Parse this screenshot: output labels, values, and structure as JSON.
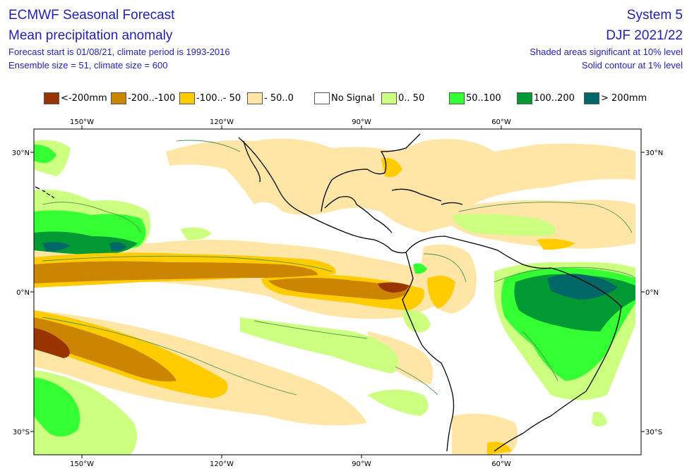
{
  "header": {
    "title": "ECMWF Seasonal Forecast",
    "subtitle": "Mean precipitation anomaly",
    "line3": "Forecast start is 01/08/21, climate period is 1993-2016",
    "line4": "Ensemble size = 51, climate size = 600",
    "system": "System 5",
    "season": "DJF 2021/22",
    "significance": "Shaded areas significant at 10% level",
    "contour": "Solid contour at 1% level"
  },
  "legend": [
    {
      "label": "<-200mm",
      "color": "#993300"
    },
    {
      "label": "-200..-100",
      "color": "#cc8500"
    },
    {
      "label": "-100..- 50",
      "color": "#ffcc00"
    },
    {
      "label": "- 50..0",
      "color": "#ffe6a6"
    },
    {
      "label": "No Signal",
      "color": "#ffffff"
    },
    {
      "label": "0.. 50",
      "color": "#ccff80"
    },
    {
      "label": "50..100",
      "color": "#33ff33"
    },
    {
      "label": "100..200",
      "color": "#009933"
    },
    {
      "label": "> 200mm",
      "color": "#006666"
    }
  ],
  "axes": {
    "lon_top": [
      "150°W",
      "120°W",
      "90°W",
      "60°W"
    ],
    "lon_bottom": [
      "150°W",
      "120°W",
      "90°W",
      "60°W"
    ],
    "lat_left": [
      "30°N",
      "0°N",
      "30°S"
    ],
    "lat_right": [
      "30°N",
      "0°N",
      "30°S"
    ]
  },
  "colors": {
    "text": "#1f1fb4",
    "coast": "#000000",
    "contour": "#4f8f4f"
  }
}
